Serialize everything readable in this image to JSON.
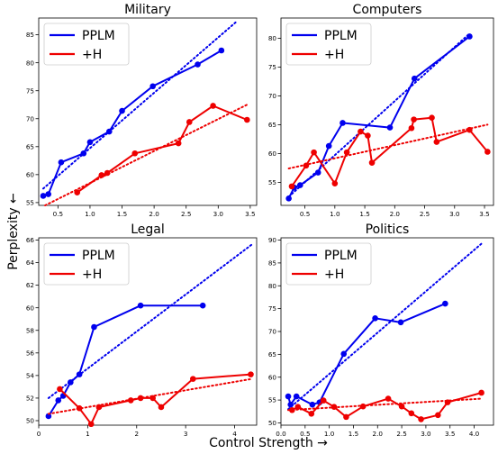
{
  "figure": {
    "xlabel": "Control Strength →",
    "ylabel": "Perplexity ←"
  },
  "colors": {
    "ppl": "#0000ee",
    "h": "#ee0000"
  },
  "chart_data": [
    {
      "type": "line",
      "title": "Military",
      "xlim": [
        0.2,
        3.6
      ],
      "ylim": [
        54.5,
        88
      ],
      "xticks": [
        0.5,
        1.0,
        1.5,
        2.0,
        2.5,
        3.0,
        3.5
      ],
      "yticks": [
        55,
        60,
        65,
        70,
        75,
        80,
        85
      ],
      "legend": "top-left",
      "series": [
        {
          "name": "PPLM",
          "color": "#0000ee",
          "x": [
            0.27,
            0.35,
            0.55,
            0.9,
            1.0,
            1.3,
            1.5,
            1.98,
            2.68,
            3.05
          ],
          "y": [
            56.2,
            56.5,
            62.2,
            63.8,
            65.8,
            67.7,
            71.4,
            75.8,
            79.7,
            82.2
          ],
          "trend": [
            [
              0.27,
              57.5
            ],
            [
              3.3,
              87.5
            ]
          ]
        },
        {
          "name": "+H",
          "color": "#ee0000",
          "x": [
            0.8,
            1.18,
            1.27,
            1.7,
            2.38,
            2.55,
            2.92,
            3.45
          ],
          "y": [
            56.8,
            59.9,
            60.3,
            63.8,
            65.6,
            69.4,
            72.3,
            69.8
          ],
          "trend": [
            [
              0.3,
              54.5
            ],
            [
              3.45,
              72.5
            ]
          ]
        }
      ]
    },
    {
      "type": "line",
      "title": "Computers",
      "xlim": [
        0.1,
        3.65
      ],
      "ylim": [
        51,
        83.5
      ],
      "xticks": [
        0.5,
        1.0,
        1.5,
        2.0,
        2.5,
        3.0,
        3.5
      ],
      "yticks": [
        55,
        60,
        65,
        70,
        75,
        80
      ],
      "legend": "top-left",
      "series": [
        {
          "name": "PPLM",
          "color": "#0000ee",
          "x": [
            0.23,
            0.32,
            0.42,
            0.72,
            0.9,
            1.13,
            1.92,
            2.33,
            3.25
          ],
          "y": [
            52.2,
            54.1,
            54.5,
            56.7,
            61.3,
            65.3,
            64.5,
            73.0,
            80.3
          ],
          "trend": [
            [
              0.23,
              52.5
            ],
            [
              3.25,
              80.8
            ]
          ]
        },
        {
          "name": "+H",
          "color": "#ee0000",
          "x": [
            0.28,
            0.52,
            0.65,
            1.0,
            1.2,
            1.43,
            1.55,
            1.62,
            2.28,
            2.32,
            2.62,
            2.7,
            3.25,
            3.55
          ],
          "y": [
            54.3,
            57.9,
            60.2,
            54.8,
            60.2,
            63.8,
            63.1,
            58.4,
            64.4,
            65.9,
            66.2,
            62.0,
            64.1,
            60.3
          ],
          "trend": [
            [
              0.23,
              57.4
            ],
            [
              3.55,
              65.0
            ]
          ]
        }
      ]
    },
    {
      "type": "line",
      "title": "Legal",
      "xlim": [
        0.0,
        4.45
      ],
      "ylim": [
        49.6,
        66.2
      ],
      "xticks": [
        0,
        1,
        2,
        3,
        4
      ],
      "yticks": [
        50,
        52,
        54,
        56,
        58,
        60,
        62,
        64,
        66
      ],
      "legend": "top-left",
      "series": [
        {
          "name": "PPLM",
          "color": "#0000ee",
          "x": [
            0.2,
            0.4,
            0.5,
            0.65,
            0.83,
            1.13,
            2.08,
            3.35
          ],
          "y": [
            50.4,
            51.8,
            52.2,
            53.4,
            54.1,
            58.3,
            60.2,
            60.2
          ],
          "trend": [
            [
              0.2,
              52.0
            ],
            [
              4.35,
              65.6
            ]
          ]
        },
        {
          "name": "+H",
          "color": "#ee0000",
          "x": [
            0.43,
            0.83,
            1.07,
            1.23,
            1.88,
            2.08,
            2.33,
            2.5,
            3.15,
            4.33
          ],
          "y": [
            52.8,
            51.1,
            49.7,
            51.2,
            51.8,
            52.0,
            52.0,
            51.2,
            53.7,
            54.1
          ],
          "trend": [
            [
              0.2,
              50.6
            ],
            [
              4.35,
              53.7
            ]
          ]
        }
      ]
    },
    {
      "type": "line",
      "title": "Politics",
      "xlim": [
        0.0,
        4.4
      ],
      "ylim": [
        49.5,
        90.5
      ],
      "xticks": [
        0.0,
        0.5,
        1.0,
        1.5,
        2.0,
        2.5,
        3.0,
        3.5,
        4.0
      ],
      "yticks": [
        50,
        55,
        60,
        65,
        70,
        75,
        80,
        85,
        90
      ],
      "legend": "top-left",
      "series": [
        {
          "name": "PPLM",
          "color": "#0000ee",
          "x": [
            0.15,
            0.2,
            0.32,
            0.65,
            0.8,
            1.3,
            1.95,
            2.48,
            3.4
          ],
          "y": [
            55.8,
            54.0,
            55.8,
            54.0,
            54.5,
            65.1,
            72.9,
            72.0,
            76.1
          ],
          "trend": [
            [
              0.15,
              53.0
            ],
            [
              4.15,
              89.2
            ]
          ]
        },
        {
          "name": "+H",
          "color": "#ee0000",
          "x": [
            0.23,
            0.35,
            0.63,
            0.88,
            1.1,
            1.35,
            1.7,
            2.22,
            2.5,
            2.7,
            2.9,
            3.25,
            3.45,
            4.15
          ],
          "y": [
            52.8,
            53.5,
            52.0,
            54.9,
            53.5,
            51.3,
            53.6,
            55.3,
            53.6,
            52.1,
            50.8,
            51.7,
            54.5,
            56.6
          ],
          "trend": [
            [
              0.15,
              52.8
            ],
            [
              4.15,
              55.3
            ]
          ]
        }
      ]
    }
  ]
}
